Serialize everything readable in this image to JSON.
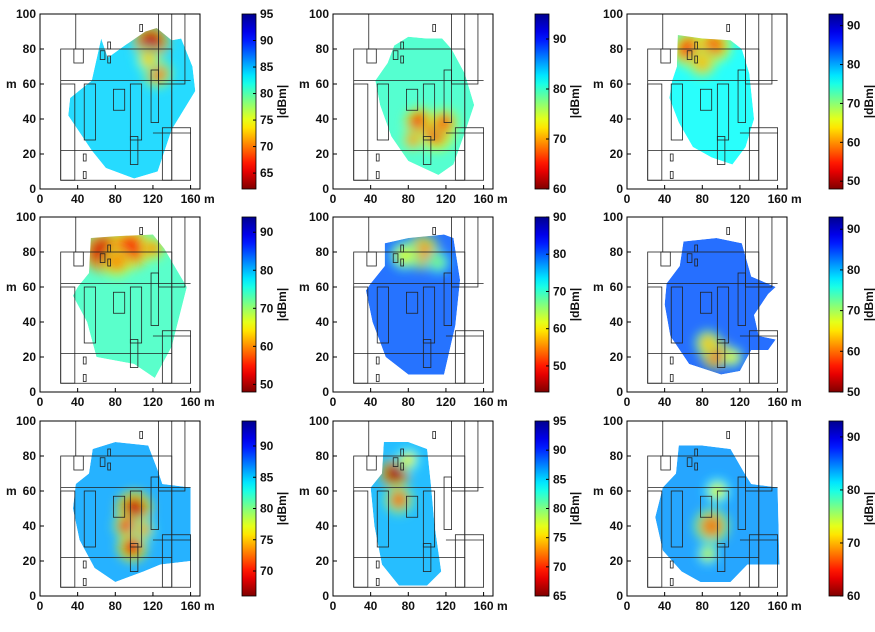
{
  "chart_data": [
    {
      "type": "heatmap",
      "xlabel": "m",
      "ylabel": "m",
      "xlim": [
        0,
        170
      ],
      "ylim": [
        0,
        100
      ],
      "xticks": [
        "0",
        "40",
        "80",
        "120",
        "160"
      ],
      "yticks": [
        "0",
        "20",
        "40",
        "60",
        "80",
        "100"
      ],
      "colorbar": {
        "label": "|dBm|",
        "min": 62,
        "max": 95,
        "ticks": [
          95,
          90,
          85,
          80,
          75,
          70,
          65
        ]
      },
      "coverage": [
        [
          32,
          52
        ],
        [
          55,
          62
        ],
        [
          65,
          86
        ],
        [
          72,
          75
        ],
        [
          90,
          82
        ],
        [
          112,
          90
        ],
        [
          124,
          92
        ],
        [
          140,
          85
        ],
        [
          150,
          86
        ],
        [
          162,
          70
        ],
        [
          165,
          56
        ],
        [
          140,
          34
        ],
        [
          125,
          10
        ],
        [
          100,
          6
        ],
        [
          70,
          12
        ],
        [
          55,
          22
        ],
        [
          30,
          42
        ]
      ],
      "hotspots": [
        {
          "x": 118,
          "y": 84,
          "r": 12,
          "value": 64
        },
        {
          "x": 125,
          "y": 66,
          "r": 10,
          "value": 70
        },
        {
          "x": 115,
          "y": 74,
          "r": 9,
          "value": 73
        }
      ],
      "base_value": 84
    },
    {
      "type": "heatmap",
      "xlabel": "m",
      "ylabel": "m",
      "xlim": [
        0,
        170
      ],
      "ylim": [
        0,
        100
      ],
      "xticks": [
        "0",
        "40",
        "80",
        "120",
        "160"
      ],
      "yticks": [
        "0",
        "20",
        "40",
        "60",
        "80",
        "100"
      ],
      "colorbar": {
        "label": "|dBm|",
        "min": 60,
        "max": 95,
        "ticks": [
          90,
          80,
          70,
          60
        ]
      },
      "coverage": [
        [
          58,
          72
        ],
        [
          65,
          82
        ],
        [
          80,
          87
        ],
        [
          100,
          86
        ],
        [
          116,
          86
        ],
        [
          126,
          80
        ],
        [
          140,
          66
        ],
        [
          150,
          48
        ],
        [
          140,
          32
        ],
        [
          128,
          14
        ],
        [
          112,
          8
        ],
        [
          80,
          16
        ],
        [
          62,
          30
        ],
        [
          50,
          48
        ],
        [
          45,
          62
        ]
      ],
      "hotspots": [
        {
          "x": 92,
          "y": 38,
          "r": 10,
          "value": 64
        },
        {
          "x": 110,
          "y": 32,
          "r": 12,
          "value": 66
        },
        {
          "x": 118,
          "y": 38,
          "r": 10,
          "value": 68
        },
        {
          "x": 85,
          "y": 28,
          "r": 8,
          "value": 70
        }
      ],
      "base_value": 80
    },
    {
      "type": "heatmap",
      "xlabel": "m",
      "ylabel": "m",
      "xlim": [
        0,
        170
      ],
      "ylim": [
        0,
        100
      ],
      "xticks": [
        "0",
        "40",
        "80",
        "120",
        "160"
      ],
      "yticks": [
        "0",
        "20",
        "40",
        "60",
        "80",
        "100"
      ],
      "colorbar": {
        "label": "|dBm|",
        "min": 48,
        "max": 93,
        "ticks": [
          90,
          80,
          70,
          60,
          50
        ]
      },
      "coverage": [
        [
          48,
          62
        ],
        [
          53,
          70
        ],
        [
          54,
          88
        ],
        [
          80,
          86
        ],
        [
          110,
          85
        ],
        [
          122,
          80
        ],
        [
          130,
          66
        ],
        [
          135,
          40
        ],
        [
          126,
          24
        ],
        [
          112,
          14
        ],
        [
          90,
          18
        ],
        [
          70,
          24
        ],
        [
          55,
          38
        ],
        [
          45,
          52
        ]
      ],
      "hotspots": [
        {
          "x": 66,
          "y": 80,
          "r": 12,
          "value": 56
        },
        {
          "x": 92,
          "y": 82,
          "r": 12,
          "value": 58
        },
        {
          "x": 80,
          "y": 72,
          "r": 10,
          "value": 62
        }
      ],
      "base_value": 76
    },
    {
      "type": "heatmap",
      "xlabel": "m",
      "ylabel": "m",
      "xlim": [
        0,
        170
      ],
      "ylim": [
        0,
        100
      ],
      "xticks": [
        "0",
        "40",
        "80",
        "120",
        "160"
      ],
      "yticks": [
        "0",
        "20",
        "40",
        "60",
        "80",
        "100"
      ],
      "colorbar": {
        "label": "|dBm|",
        "min": 48,
        "max": 94,
        "ticks": [
          90,
          80,
          70,
          60,
          50
        ]
      },
      "coverage": [
        [
          40,
          60
        ],
        [
          52,
          68
        ],
        [
          54,
          88
        ],
        [
          80,
          89
        ],
        [
          120,
          90
        ],
        [
          132,
          82
        ],
        [
          156,
          60
        ],
        [
          140,
          26
        ],
        [
          122,
          8
        ],
        [
          100,
          16
        ],
        [
          60,
          20
        ],
        [
          50,
          40
        ],
        [
          35,
          55
        ]
      ],
      "hotspots": [
        {
          "x": 68,
          "y": 80,
          "r": 14,
          "value": 52
        },
        {
          "x": 96,
          "y": 82,
          "r": 14,
          "value": 55
        },
        {
          "x": 82,
          "y": 74,
          "r": 10,
          "value": 60
        },
        {
          "x": 120,
          "y": 82,
          "r": 8,
          "value": 60
        }
      ],
      "base_value": 74
    },
    {
      "type": "heatmap",
      "xlabel": "m",
      "ylabel": "m",
      "xlim": [
        0,
        170
      ],
      "ylim": [
        0,
        100
      ],
      "xticks": [
        "0",
        "40",
        "80",
        "120",
        "160"
      ],
      "yticks": [
        "0",
        "20",
        "40",
        "60",
        "80",
        "100"
      ],
      "colorbar": {
        "label": "|dBm|",
        "min": 43,
        "max": 90,
        "ticks": [
          90,
          80,
          70,
          60,
          50
        ]
      },
      "coverage": [
        [
          40,
          62
        ],
        [
          55,
          72
        ],
        [
          55,
          85
        ],
        [
          80,
          88
        ],
        [
          118,
          90
        ],
        [
          128,
          88
        ],
        [
          135,
          64
        ],
        [
          130,
          38
        ],
        [
          118,
          10
        ],
        [
          80,
          10
        ],
        [
          56,
          20
        ],
        [
          42,
          40
        ],
        [
          35,
          58
        ]
      ],
      "hotspots": [
        {
          "x": 95,
          "y": 80,
          "r": 12,
          "value": 56
        },
        {
          "x": 76,
          "y": 78,
          "r": 10,
          "value": 62
        },
        {
          "x": 112,
          "y": 74,
          "r": 8,
          "value": 66
        }
      ],
      "base_value": 80
    },
    {
      "type": "heatmap",
      "xlabel": "m",
      "ylabel": "m",
      "xlim": [
        0,
        170
      ],
      "ylim": [
        0,
        100
      ],
      "xticks": [
        "0",
        "40",
        "80",
        "120",
        "160"
      ],
      "yticks": [
        "0",
        "20",
        "40",
        "60",
        "80",
        "100"
      ],
      "colorbar": {
        "label": "|dBm|",
        "min": 50,
        "max": 93,
        "ticks": [
          90,
          80,
          70,
          60,
          50
        ]
      },
      "coverage": [
        [
          42,
          62
        ],
        [
          56,
          72
        ],
        [
          60,
          86
        ],
        [
          95,
          88
        ],
        [
          122,
          85
        ],
        [
          132,
          66
        ],
        [
          158,
          60
        ],
        [
          150,
          56
        ],
        [
          135,
          44
        ],
        [
          140,
          32
        ],
        [
          158,
          30
        ],
        [
          150,
          24
        ],
        [
          132,
          24
        ],
        [
          120,
          12
        ],
        [
          100,
          10
        ],
        [
          66,
          16
        ],
        [
          46,
          32
        ],
        [
          40,
          50
        ]
      ],
      "hotspots": [
        {
          "x": 94,
          "y": 22,
          "r": 10,
          "value": 58
        },
        {
          "x": 86,
          "y": 28,
          "r": 9,
          "value": 64
        },
        {
          "x": 112,
          "y": 20,
          "r": 7,
          "value": 66
        }
      ],
      "base_value": 84
    },
    {
      "type": "heatmap",
      "xlabel": "m",
      "ylabel": "m",
      "xlim": [
        0,
        170
      ],
      "ylim": [
        0,
        100
      ],
      "xticks": [
        "0",
        "40",
        "80",
        "120",
        "160"
      ],
      "yticks": [
        "0",
        "20",
        "40",
        "60",
        "80",
        "100"
      ],
      "colorbar": {
        "label": "|dBm|",
        "min": 66,
        "max": 94,
        "ticks": [
          90,
          85,
          80,
          75,
          70
        ]
      },
      "coverage": [
        [
          38,
          64
        ],
        [
          52,
          70
        ],
        [
          56,
          84
        ],
        [
          80,
          88
        ],
        [
          115,
          86
        ],
        [
          125,
          72
        ],
        [
          130,
          64
        ],
        [
          160,
          62
        ],
        [
          160,
          20
        ],
        [
          128,
          18
        ],
        [
          110,
          14
        ],
        [
          80,
          8
        ],
        [
          58,
          16
        ],
        [
          42,
          32
        ],
        [
          35,
          50
        ]
      ],
      "hotspots": [
        {
          "x": 100,
          "y": 50,
          "r": 12,
          "value": 68
        },
        {
          "x": 98,
          "y": 28,
          "r": 10,
          "value": 69
        },
        {
          "x": 92,
          "y": 40,
          "r": 9,
          "value": 71
        },
        {
          "x": 110,
          "y": 38,
          "r": 8,
          "value": 74
        }
      ],
      "base_value": 86
    },
    {
      "type": "heatmap",
      "xlabel": "m",
      "ylabel": "m",
      "xlim": [
        0,
        170
      ],
      "ylim": [
        0,
        100
      ],
      "xticks": [
        "0",
        "40",
        "80",
        "120",
        "160"
      ],
      "yticks": [
        "0",
        "20",
        "40",
        "60",
        "80",
        "100"
      ],
      "colorbar": {
        "label": "|dBm|",
        "min": 65,
        "max": 95,
        "ticks": [
          95,
          90,
          85,
          80,
          75,
          70,
          65
        ]
      },
      "coverage": [
        [
          40,
          62
        ],
        [
          52,
          70
        ],
        [
          54,
          88
        ],
        [
          80,
          88
        ],
        [
          100,
          84
        ],
        [
          104,
          64
        ],
        [
          108,
          40
        ],
        [
          115,
          14
        ],
        [
          100,
          6
        ],
        [
          70,
          6
        ],
        [
          52,
          18
        ],
        [
          44,
          40
        ]
      ],
      "hotspots": [
        {
          "x": 66,
          "y": 70,
          "r": 10,
          "value": 66
        },
        {
          "x": 70,
          "y": 55,
          "r": 10,
          "value": 72
        },
        {
          "x": 80,
          "y": 78,
          "r": 8,
          "value": 76
        }
      ],
      "base_value": 86
    },
    {
      "type": "heatmap",
      "xlabel": "m",
      "ylabel": "m",
      "xlim": [
        0,
        170
      ],
      "ylim": [
        0,
        100
      ],
      "xticks": [
        "0",
        "40",
        "80",
        "120",
        "160"
      ],
      "yticks": [
        "0",
        "20",
        "40",
        "60",
        "80",
        "100"
      ],
      "colorbar": {
        "label": "|dBm|",
        "min": 60,
        "max": 93,
        "ticks": [
          90,
          80,
          70,
          60
        ]
      },
      "coverage": [
        [
          38,
          62
        ],
        [
          52,
          70
        ],
        [
          55,
          86
        ],
        [
          80,
          86
        ],
        [
          110,
          84
        ],
        [
          125,
          70
        ],
        [
          132,
          64
        ],
        [
          160,
          62
        ],
        [
          162,
          18
        ],
        [
          128,
          18
        ],
        [
          110,
          8
        ],
        [
          78,
          8
        ],
        [
          58,
          14
        ],
        [
          38,
          26
        ],
        [
          30,
          45
        ]
      ],
      "hotspots": [
        {
          "x": 90,
          "y": 40,
          "r": 12,
          "value": 68
        },
        {
          "x": 96,
          "y": 60,
          "r": 9,
          "value": 73
        },
        {
          "x": 86,
          "y": 24,
          "r": 8,
          "value": 74
        }
      ],
      "base_value": 84
    }
  ]
}
